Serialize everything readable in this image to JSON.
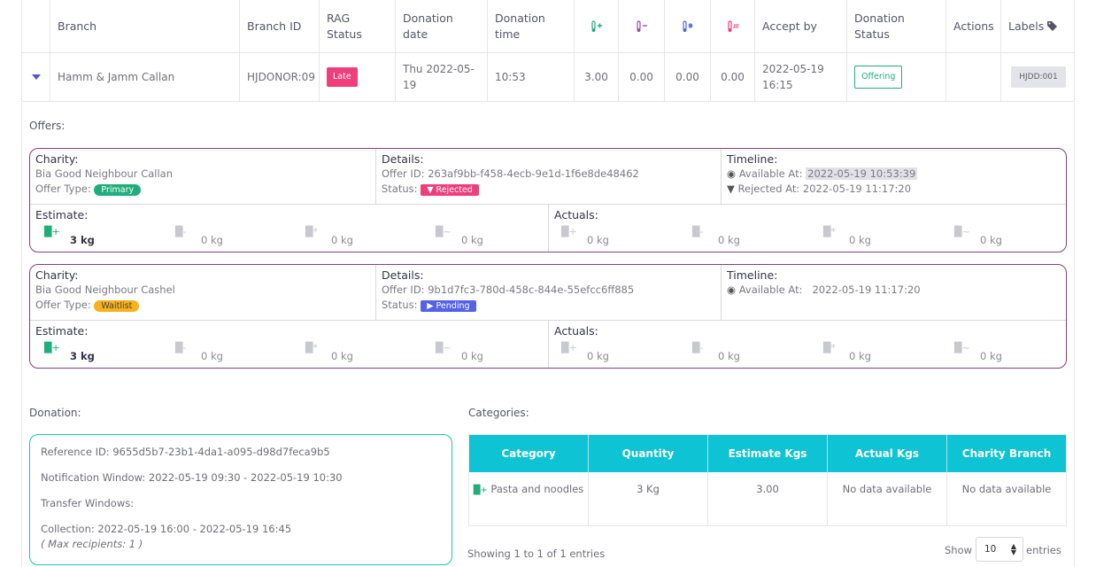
{
  "table": {
    "headers": {
      "branch": "Branch",
      "branch_id": "Branch ID",
      "rag": "RAG Status",
      "date": "Donation date",
      "time": "Donation time",
      "accept_by": "Accept by",
      "status": "Donation Status",
      "actions": "Actions",
      "labels": "Labels"
    },
    "header_icons": [
      "ambient-plus-icon",
      "chilled-icon",
      "frozen-icon",
      "hot-icon",
      "tag-icon"
    ],
    "row": {
      "branch": "Hamm & Jamm Callan",
      "branch_id": "HJDONOR:09",
      "rag": "Late",
      "date": "Thu 2022-05-19",
      "time": "10:53",
      "v1": "3.00",
      "v2": "0.00",
      "v3": "0.00",
      "v4": "0.00",
      "accept_by": "2022-05-19 16:15",
      "status": "Offering",
      "label": "HJDD:001"
    }
  },
  "offers_title": "Offers:",
  "offers": [
    {
      "charity_title": "Charity:",
      "charity": "Bia Good Neighbour Callan",
      "offer_type_label": "Offer Type:",
      "offer_type": "Primary",
      "details_title": "Details:",
      "offer_id": "Offer ID: 263af9bb-f458-4ecb-9e1d-1f6e8de48462",
      "status_label": "Status:",
      "status": "Rejected",
      "timeline_title": "Timeline:",
      "available_label": "Available At:",
      "available": "2022-05-19 10:53:39",
      "rejected_label": "Rejected At:",
      "rejected": "2022-05-19 11:17:20",
      "estimate_title": "Estimate:",
      "actuals_title": "Actuals:",
      "estimate": [
        "3 kg",
        "0 kg",
        "0 kg",
        "0 kg"
      ],
      "actuals": [
        "0 kg",
        "0 kg",
        "0 kg",
        "0 kg"
      ]
    },
    {
      "charity_title": "Charity:",
      "charity": "Bia Good Neighbour Cashel",
      "offer_type_label": "Offer Type:",
      "offer_type": "Waitlist",
      "details_title": "Details:",
      "offer_id": "Offer ID: 9b1d7fc3-780d-458c-844e-55efcc6ff885",
      "status_label": "Status:",
      "status": "Pending",
      "timeline_title": "Timeline:",
      "available_label": "Available At:",
      "available": "2022-05-19 11:17:20",
      "estimate_title": "Estimate:",
      "actuals_title": "Actuals:",
      "estimate": [
        "3 kg",
        "0 kg",
        "0 kg",
        "0 kg"
      ],
      "actuals": [
        "0 kg",
        "0 kg",
        "0 kg",
        "0 kg"
      ]
    }
  ],
  "donation": {
    "title": "Donation:",
    "reference": "Reference ID: 9655d5b7-23b1-4da1-a095-d98d7feca9b5",
    "notification": "Notification Window: 2022-05-19 09:30 - 2022-05-19 10:30",
    "transfer": "Transfer Windows:",
    "collection": "Collection: 2022-05-19 16:00 - 2022-05-19 16:45",
    "max": "( Max recipients: 1 )"
  },
  "categories": {
    "title": "Categories:",
    "headers": [
      "Category",
      "Quantity",
      "Estimate Kgs",
      "Actual Kgs",
      "Charity Branch"
    ],
    "row": {
      "category": "Pasta and noodles",
      "quantity": "3 Kg",
      "estimate": "3.00",
      "actual": "No data available",
      "branch": "No data available"
    },
    "showing": "Showing 1 to 1 of 1 entries",
    "show_label": "Show",
    "show_value": "10",
    "entries_label": "entries"
  },
  "colors": {
    "accent": "#0ec3d4",
    "offer_border": "#8c3b7f",
    "late": "#ef3e7a",
    "primary": "#1fae7a",
    "waitlist": "#f7b11a",
    "pending": "#5561e8"
  }
}
